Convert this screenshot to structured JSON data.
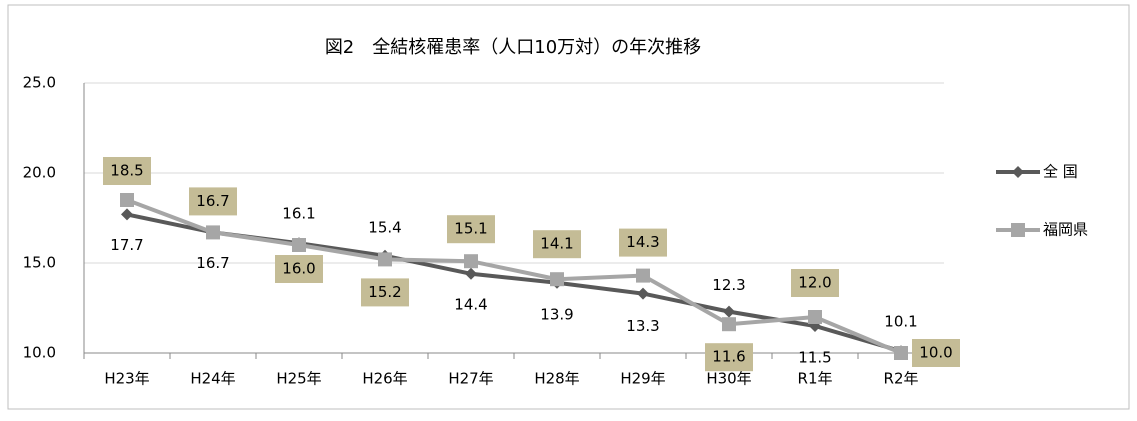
{
  "chart_data": {
    "type": "line",
    "title": "図2　全結核罹患率（人口10万対）の年次推移",
    "categories": [
      "H23年",
      "H24年",
      "H25年",
      "H26年",
      "H27年",
      "H28年",
      "H29年",
      "H30年",
      "R1年",
      "R2年"
    ],
    "series": [
      {
        "name": "全 国",
        "color": "#595959",
        "marker": "diamond",
        "values": [
          17.7,
          16.7,
          16.1,
          15.4,
          14.4,
          13.9,
          13.3,
          12.3,
          11.5,
          10.1
        ],
        "value_labels": [
          "17.7",
          "16.7",
          "16.1",
          "15.4",
          "14.4",
          "13.9",
          "13.3",
          "12.3",
          "11.5",
          "10.1"
        ]
      },
      {
        "name": "福岡県",
        "color": "#a6a6a6",
        "marker": "square",
        "values": [
          18.5,
          16.7,
          16.0,
          15.2,
          15.1,
          14.1,
          14.3,
          11.6,
          12.0,
          10.0
        ],
        "value_labels": [
          "18.5",
          "16.7",
          "16.0",
          "15.2",
          "15.1",
          "14.1",
          "14.3",
          "11.6",
          "12.0",
          "10.0"
        ]
      }
    ],
    "ylim": [
      10,
      25
    ],
    "yticks": [
      {
        "value": 10,
        "label": "10.0"
      },
      {
        "value": 15,
        "label": "15.0"
      },
      {
        "value": 20,
        "label": "20.0"
      },
      {
        "value": 25,
        "label": "25.0"
      }
    ],
    "grid": true,
    "legend": "right"
  }
}
